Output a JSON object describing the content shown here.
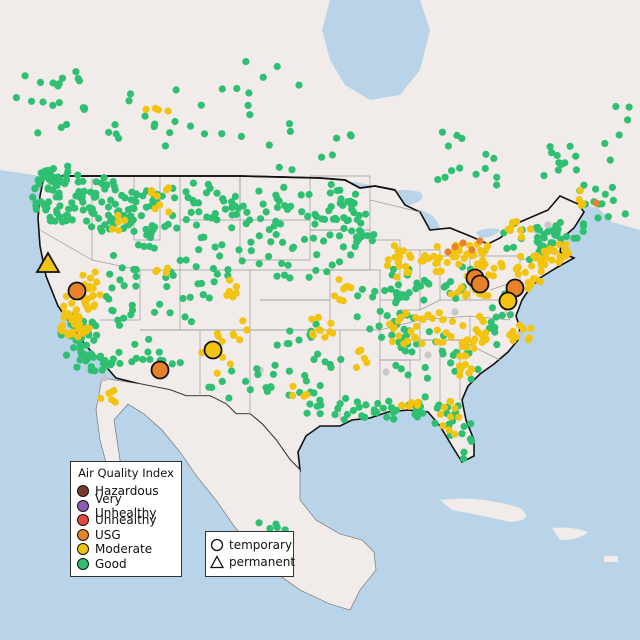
{
  "legend": {
    "title": "Air Quality Index",
    "categories": [
      {
        "label": "Hazardous",
        "color": "#7a3a2e"
      },
      {
        "label": "Very Unhealthy",
        "color": "#8e5bb5"
      },
      {
        "label": "Unhealthy",
        "color": "#e8473a"
      },
      {
        "label": "USG",
        "color": "#e8822a"
      },
      {
        "label": "Moderate",
        "color": "#f2c40f"
      },
      {
        "label": "Good",
        "color": "#2fbf71"
      }
    ]
  },
  "monitor_types": {
    "temporary": {
      "label": "temporary",
      "shape": "circle"
    },
    "permanent": {
      "label": "permanent",
      "shape": "triangle"
    }
  },
  "colors": {
    "water": "#b9d3e8",
    "land": "#f1ecea",
    "no_data_gray": "#c7c7c7",
    "border": "#111111"
  }
}
